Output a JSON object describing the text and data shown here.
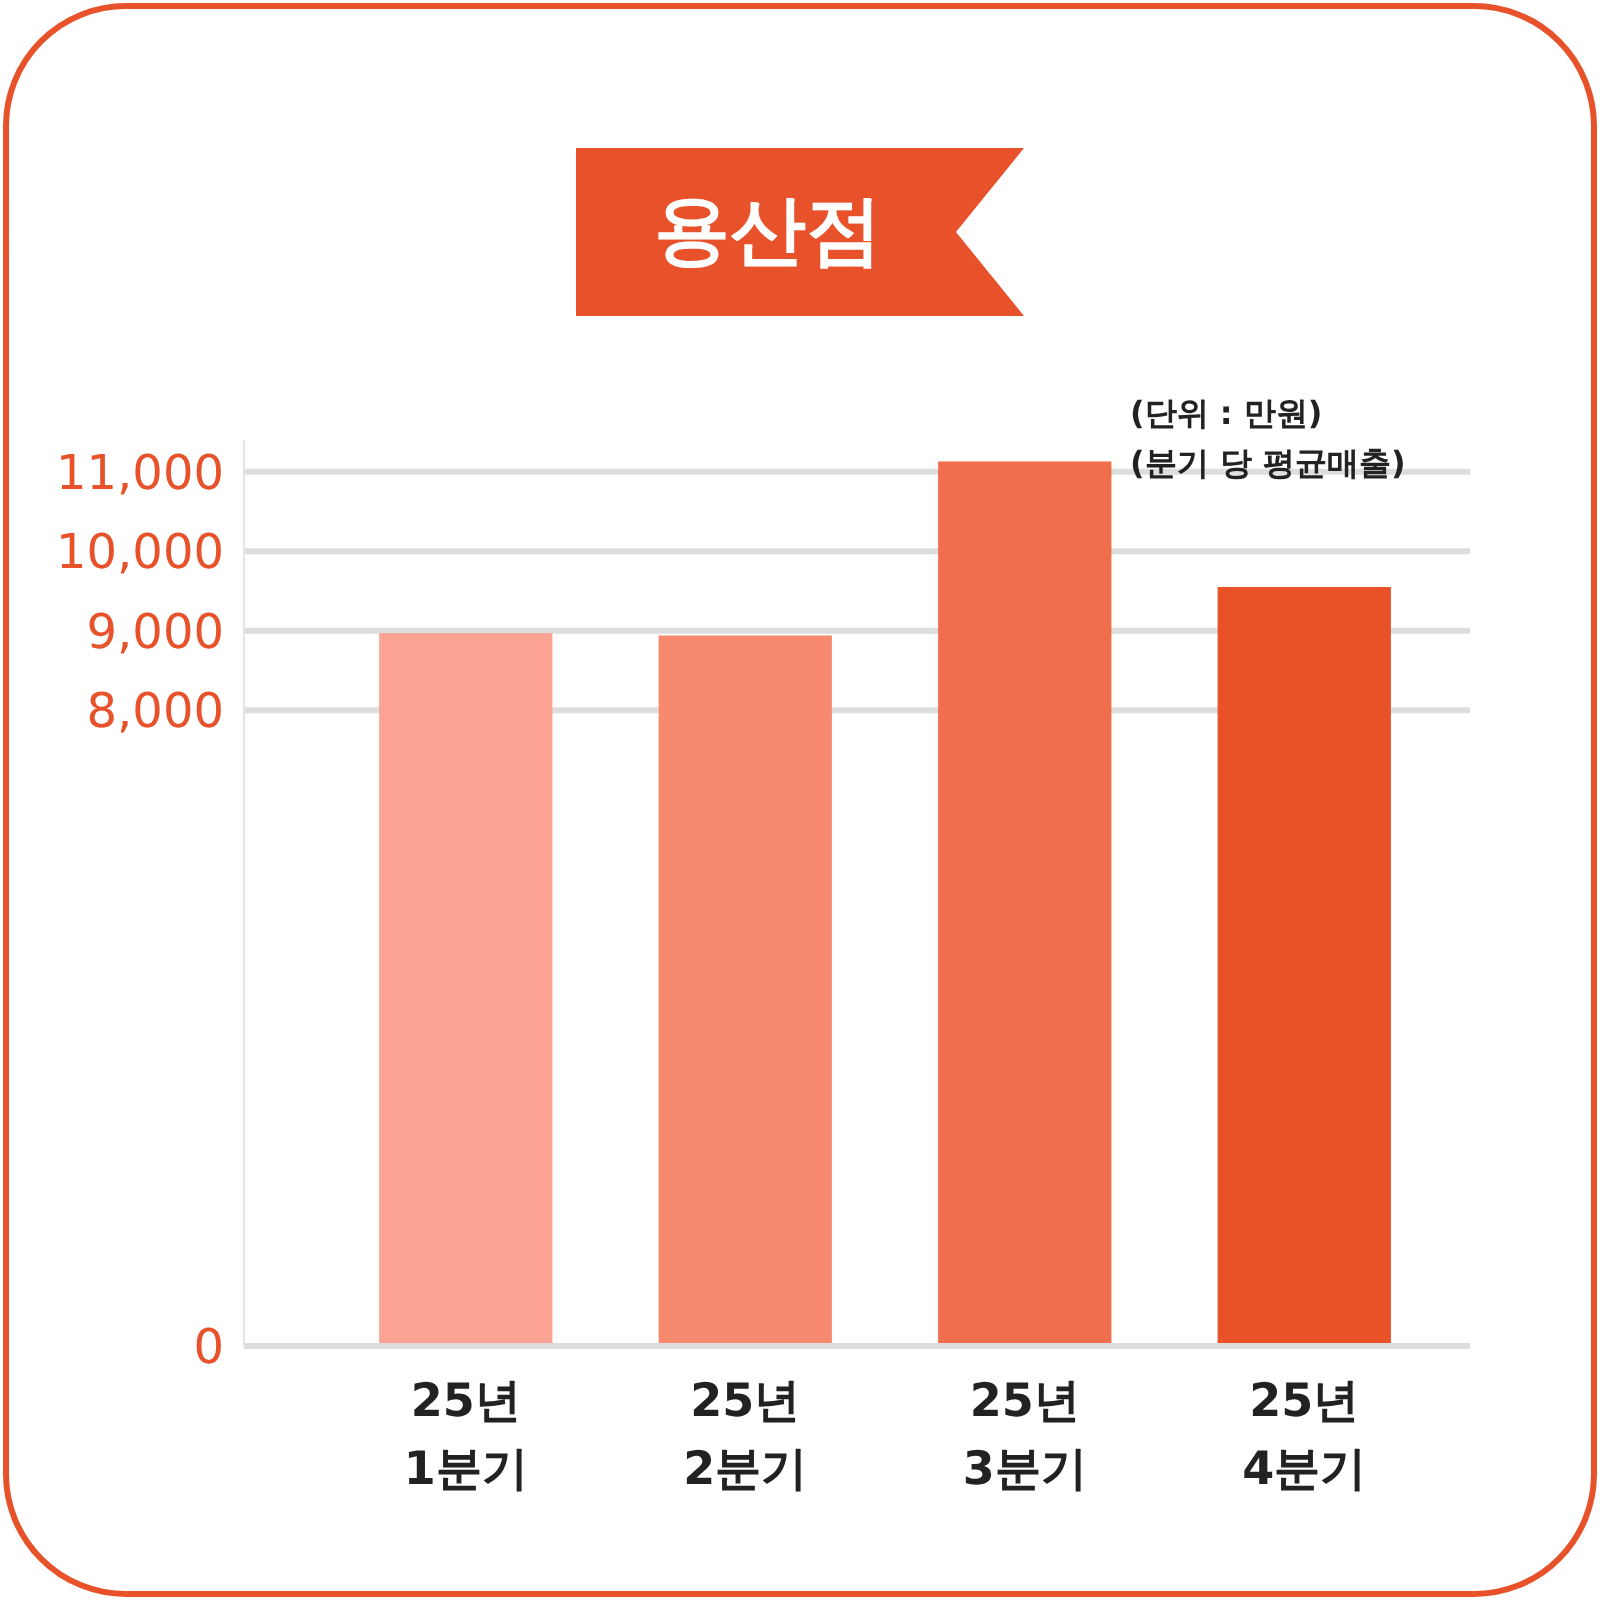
{
  "chart_data": {
    "type": "bar",
    "title": "용산점",
    "categories": [
      "25년\n1분기",
      "25년\n2분기",
      "25년\n3분기",
      "25년\n4분기"
    ],
    "values": [
      8970,
      8940,
      11130,
      9550
    ],
    "colors": [
      "#fca393",
      "#f7896f",
      "#f06e4c",
      "#e85226"
    ],
    "ylim": [
      0,
      11400
    ],
    "yticks": [
      0,
      {
        "value": 8000,
        "label": "8,000"
      },
      {
        "value": 9000,
        "label": "9,000"
      },
      {
        "value": 10000,
        "label": "10,000"
      },
      {
        "value": 11000,
        "label": "11,000"
      }
    ],
    "grid": "y",
    "annotations": [
      "(단위 : 만원)",
      "(분기 당 평균매출)"
    ]
  }
}
